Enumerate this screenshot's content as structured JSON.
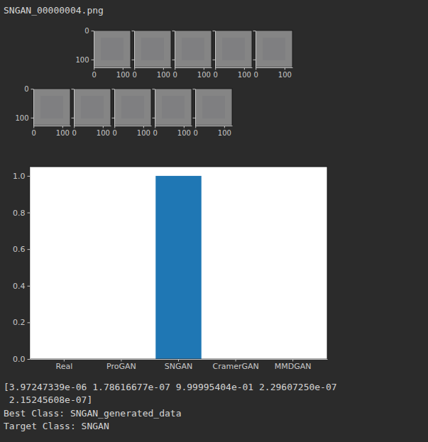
{
  "header": {
    "filename": "SNGAN_00000004.png"
  },
  "chart_data": [
    {
      "type": "image",
      "xlim": [
        -0.5,
        127.5
      ],
      "ylim": [
        127.5,
        -0.5
      ],
      "xticks": [
        0,
        100
      ],
      "yticks": [
        0,
        100
      ]
    },
    {
      "type": "image",
      "xlim": [
        -0.5,
        127.5
      ],
      "ylim": [
        127.5,
        -0.5
      ],
      "xticks": [
        0,
        100
      ],
      "yticks": [
        0,
        100
      ],
      "tick_labels": "x"
    },
    {
      "type": "image",
      "xlim": [
        -0.5,
        127.5
      ],
      "ylim": [
        127.5,
        -0.5
      ],
      "xticks": [
        0,
        100
      ],
      "yticks": [
        0,
        100
      ],
      "tick_labels": "x"
    },
    {
      "type": "image",
      "xlim": [
        -0.5,
        127.5
      ],
      "ylim": [
        127.5,
        -0.5
      ],
      "xticks": [
        0,
        100
      ],
      "yticks": [
        0,
        100
      ],
      "tick_labels": "x"
    },
    {
      "type": "image",
      "xlim": [
        -0.5,
        127.5
      ],
      "ylim": [
        127.5,
        -0.5
      ],
      "xticks": [
        0,
        100
      ],
      "yticks": [
        0,
        100
      ],
      "tick_labels": "x"
    },
    {
      "type": "image",
      "xlim": [
        -0.5,
        127.5
      ],
      "ylim": [
        127.5,
        -0.5
      ],
      "xticks": [
        0,
        100
      ],
      "yticks": [
        0,
        100
      ]
    },
    {
      "type": "image",
      "xlim": [
        -0.5,
        127.5
      ],
      "ylim": [
        127.5,
        -0.5
      ],
      "xticks": [
        0,
        100
      ],
      "yticks": [
        0,
        100
      ],
      "tick_labels": "x"
    },
    {
      "type": "image",
      "xlim": [
        -0.5,
        127.5
      ],
      "ylim": [
        127.5,
        -0.5
      ],
      "xticks": [
        0,
        100
      ],
      "yticks": [
        0,
        100
      ],
      "tick_labels": "x"
    },
    {
      "type": "image",
      "xlim": [
        -0.5,
        127.5
      ],
      "ylim": [
        127.5,
        -0.5
      ],
      "xticks": [
        0,
        100
      ],
      "yticks": [
        0,
        100
      ],
      "tick_labels": "x"
    },
    {
      "type": "image",
      "xlim": [
        -0.5,
        127.5
      ],
      "ylim": [
        127.5,
        -0.5
      ],
      "xticks": [
        0,
        100
      ],
      "yticks": [
        0,
        100
      ],
      "tick_labels": "x"
    },
    {
      "type": "bar",
      "categories": [
        "Real",
        "ProGAN",
        "SNGAN",
        "CramerGAN",
        "MMDGAN"
      ],
      "values": [
        3.97247339e-06,
        1.78616677e-07,
        0.999995404,
        2.2960725e-07,
        2.15245608e-07
      ],
      "color": "#1f77b4",
      "ylim": [
        0,
        1.05
      ],
      "yticks": [
        {
          "value": 0,
          "label": "0.0"
        },
        0.2,
        0.4,
        0.6,
        0.8,
        {
          "value": 1,
          "label": "1.0"
        }
      ]
    }
  ],
  "output": {
    "lines": [
      "[3.97247339e-06 1.78616677e-07 9.99995404e-01 2.29607250e-07",
      " 2.15245608e-07]",
      "Best Class: SNGAN_generated_data",
      "Target Class: SNGAN"
    ]
  }
}
